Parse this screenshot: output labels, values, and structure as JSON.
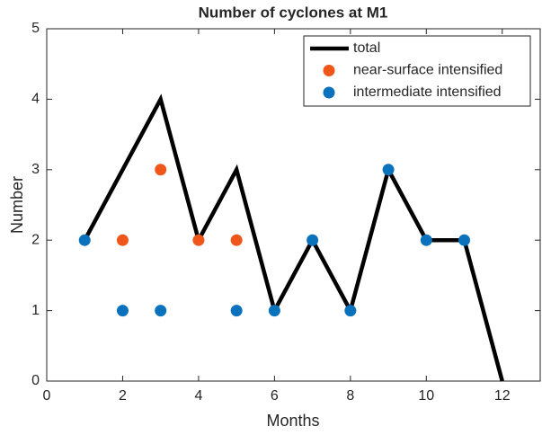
{
  "chart_data": {
    "type": "line",
    "title": "Number of cyclones at M1",
    "xlabel": "Months",
    "ylabel": "Number",
    "xlim": [
      0,
      13
    ],
    "xticks": [
      0,
      2,
      4,
      6,
      8,
      10,
      12
    ],
    "ylim": [
      0,
      5
    ],
    "yticks": [
      0,
      1,
      2,
      3,
      4,
      5
    ],
    "legend": "upper right",
    "series": [
      {
        "name": "total",
        "type": "line",
        "color": "#000000",
        "x": [
          1,
          2,
          3,
          4,
          5,
          6,
          7,
          8,
          9,
          10,
          11,
          12
        ],
        "values": [
          2,
          3,
          4,
          2,
          3,
          1,
          2,
          1,
          3,
          2,
          2,
          0
        ]
      },
      {
        "name": "near-surface intensified",
        "type": "scatter",
        "color": "#f0561a",
        "x": [
          2,
          3,
          4,
          5
        ],
        "values": [
          2,
          3,
          2,
          2
        ]
      },
      {
        "name": "intermediate intensified",
        "type": "scatter",
        "color": "#0a72bd",
        "x": [
          1,
          2,
          3,
          5,
          6,
          7,
          8,
          9,
          10,
          11
        ],
        "values": [
          2,
          1,
          1,
          1,
          1,
          2,
          1,
          3,
          2,
          2
        ]
      }
    ]
  }
}
